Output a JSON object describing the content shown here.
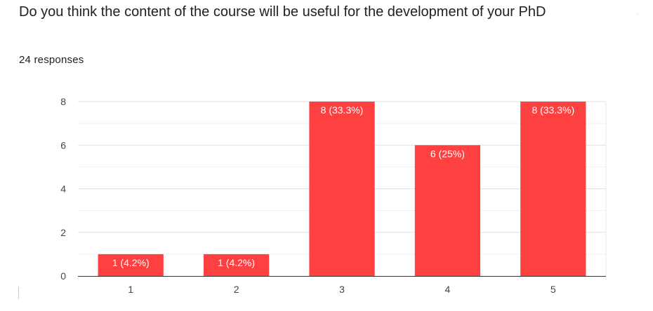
{
  "question": {
    "title": "Do you think the content of the course will be useful for the development of your PhD",
    "response_count": "24 responses"
  },
  "colors": {
    "bar": "#ff4040",
    "grid": "#e8e8e8",
    "axis": "#333333",
    "text": "#202124"
  },
  "chart_data": {
    "type": "bar",
    "categories": [
      "1",
      "2",
      "3",
      "4",
      "5"
    ],
    "values": [
      1,
      1,
      8,
      6,
      8
    ],
    "data_labels": [
      "1 (4.2%)",
      "1 (4.2%)",
      "8 (33.3%)",
      "6 (25%)",
      "8 (33.3%)"
    ],
    "yticks": [
      "0",
      "2",
      "4",
      "6",
      "8"
    ],
    "ylim": [
      0,
      8
    ],
    "grid": true,
    "minor_grid": true,
    "xlabel": "",
    "ylabel": ""
  }
}
